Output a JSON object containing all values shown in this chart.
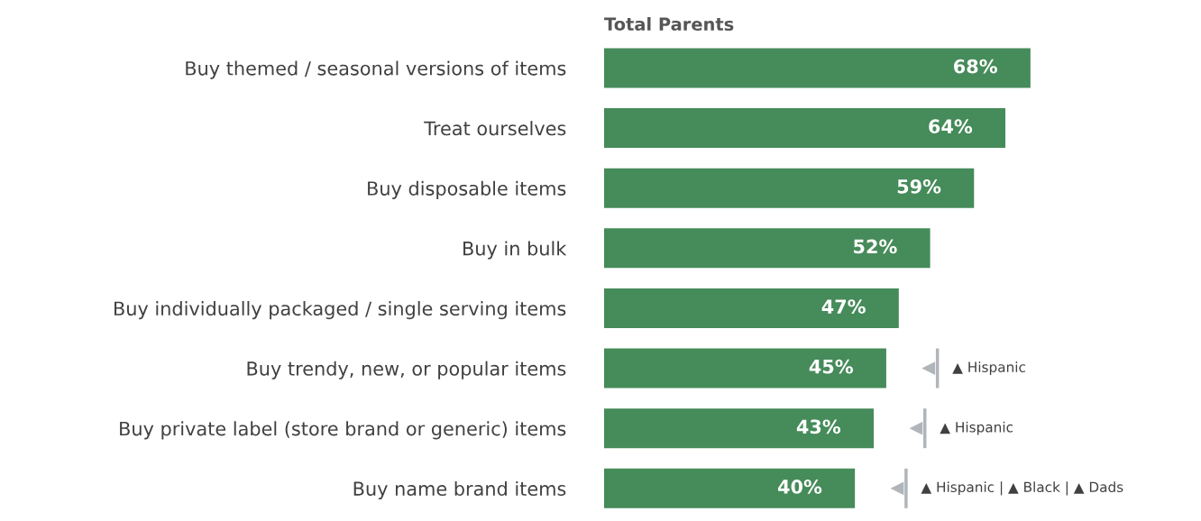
{
  "chart_data": {
    "type": "bar",
    "orientation": "horizontal",
    "title": "Total Parents",
    "categories": [
      "Buy themed / seasonal versions of items",
      "Treat ourselves",
      "Buy disposable items",
      "Buy in bulk",
      "Buy individually packaged / single serving items",
      "Buy trendy, new, or popular items",
      "Buy private label (store brand or generic) items",
      "Buy name brand items"
    ],
    "values": [
      68,
      64,
      59,
      52,
      47,
      45,
      43,
      40
    ],
    "value_labels": [
      "68%",
      "64%",
      "59%",
      "52%",
      "47%",
      "45%",
      "43%",
      "40%"
    ],
    "color": "#468b5a",
    "annotations": [
      "▲ Hispanic",
      "▲ Hispanic",
      "▲ Hispanic | ▲ Black | ▲ Dads"
    ],
    "grid": false
  }
}
